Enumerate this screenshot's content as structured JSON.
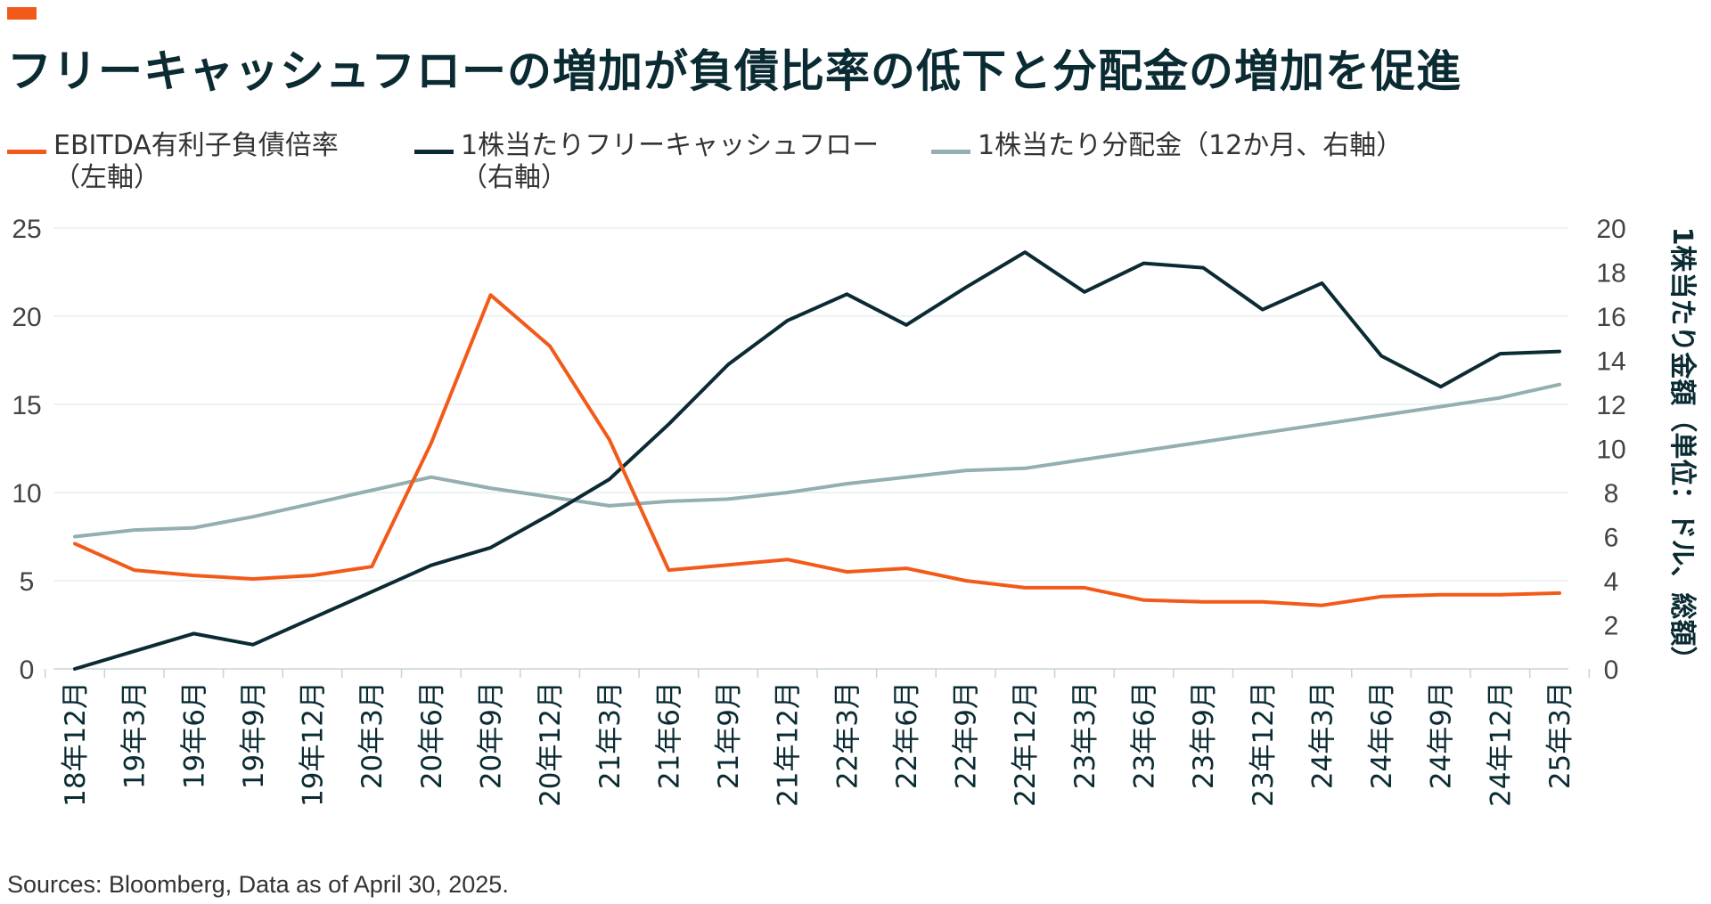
{
  "header": {
    "title": "フリーキャッシュフローの増加が負債比率の低下と分配金の増加を促進"
  },
  "legend": [
    {
      "label": "EBITDA有利子負債倍率\n（左軸）",
      "color": "#f25a1a"
    },
    {
      "label": "1株当たりフリーキャッシュフロー\n（右軸）",
      "color": "#0b2b33"
    },
    {
      "label": "1株当たり分配金（12か月、右軸）",
      "color": "#93afb0"
    }
  ],
  "footer": {
    "source": "Sources: Bloomberg, Data as of April 30, 2025."
  },
  "chart_data": {
    "type": "line",
    "title": "フリーキャッシュフローの増加が負債比率の低下と分配金の増加を促進",
    "xlabel": "",
    "ylabel": "",
    "y2label": "1株当たり金額（単位：ドル、総額）",
    "ylim": [
      0,
      25
    ],
    "y2lim": [
      0,
      20
    ],
    "yticks": [
      0,
      5,
      10,
      15,
      20,
      25
    ],
    "y2ticks": [
      0,
      2,
      4,
      6,
      8,
      10,
      12,
      14,
      16,
      18,
      20
    ],
    "grid": true,
    "legend_position": "top",
    "x": [
      "18年12月",
      "19年3月",
      "19年6月",
      "19年9月",
      "19年12月",
      "20年3月",
      "20年6月",
      "20年9月",
      "20年12月",
      "21年3月",
      "21年6月",
      "21年9月",
      "21年12月",
      "22年3月",
      "22年6月",
      "22年9月",
      "22年12月",
      "23年3月",
      "23年6月",
      "23年9月",
      "23年12月",
      "24年3月",
      "24年6月",
      "24年9月",
      "24年12月",
      "25年3月"
    ],
    "series": [
      {
        "name": "EBITDA有利子負債倍率（左軸）",
        "axis": "left",
        "color": "#f25a1a",
        "values": [
          7.1,
          5.6,
          5.3,
          5.1,
          5.3,
          5.8,
          12.8,
          21.2,
          18.3,
          13.0,
          5.6,
          5.9,
          6.2,
          5.5,
          5.7,
          5.0,
          4.6,
          4.6,
          3.9,
          3.8,
          3.8,
          3.6,
          4.1,
          4.2,
          4.2,
          4.3
        ]
      },
      {
        "name": "1株当たりフリーキャッシュフロー（右軸）",
        "axis": "right",
        "color": "#0b2b33",
        "values": [
          0.0,
          0.8,
          1.6,
          1.1,
          2.3,
          3.5,
          4.7,
          5.5,
          7.0,
          8.6,
          11.1,
          13.8,
          15.8,
          17.0,
          15.6,
          17.3,
          18.9,
          17.1,
          18.4,
          18.2,
          16.3,
          17.5,
          14.2,
          12.8,
          14.3,
          14.4
        ]
      },
      {
        "name": "1株当たり分配金（12か月、右軸）",
        "axis": "right",
        "color": "#93afb0",
        "values": [
          6.0,
          6.3,
          6.4,
          6.9,
          7.5,
          8.1,
          8.7,
          8.2,
          7.8,
          7.4,
          7.6,
          7.7,
          8.0,
          8.4,
          8.7,
          9.0,
          9.1,
          9.5,
          9.9,
          10.3,
          10.7,
          11.1,
          11.5,
          11.9,
          12.3,
          12.9
        ]
      }
    ]
  }
}
